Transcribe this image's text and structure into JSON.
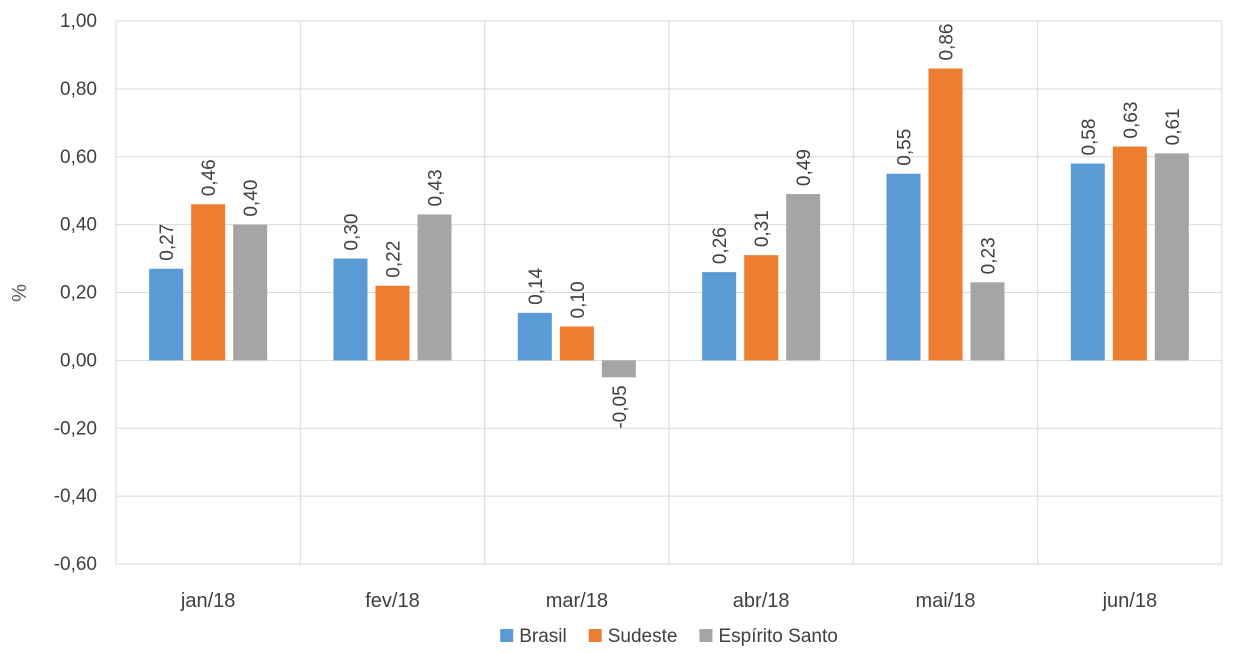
{
  "chart_data": {
    "type": "bar",
    "ylabel": "%",
    "ylim": [
      -0.6,
      1.0
    ],
    "yticks": [
      1.0,
      0.8,
      0.6,
      0.4,
      0.2,
      0.0,
      -0.2,
      -0.4,
      -0.6
    ],
    "ytick_labels": [
      "1,00",
      "0,80",
      "0,60",
      "0,40",
      "0,20",
      "0,00",
      "-0,20",
      "-0,40",
      "-0,60"
    ],
    "categories": [
      "jan/18",
      "fev/18",
      "mar/18",
      "abr/18",
      "mai/18",
      "jun/18"
    ],
    "series": [
      {
        "name": "Brasil",
        "color": "#5B9BD5",
        "values": [
          0.27,
          0.3,
          0.14,
          0.26,
          0.55,
          0.58
        ],
        "labels": [
          "0,27",
          "0,30",
          "0,14",
          "0,26",
          "0,55",
          "0,58"
        ]
      },
      {
        "name": "Sudeste",
        "color": "#ED7D31",
        "values": [
          0.46,
          0.22,
          0.1,
          0.31,
          0.86,
          0.63
        ],
        "labels": [
          "0,46",
          "0,22",
          "0,10",
          "0,31",
          "0,86",
          "0,63"
        ]
      },
      {
        "name": "Espírito Santo",
        "color": "#A5A5A5",
        "values": [
          0.4,
          0.43,
          -0.05,
          0.49,
          0.23,
          0.61
        ],
        "labels": [
          "0,40",
          "0,43",
          "-0,05",
          "0,49",
          "0,23",
          "0,61"
        ]
      }
    ],
    "grid": true,
    "legend": "bottom",
    "data_label_orientation": "vertical"
  }
}
